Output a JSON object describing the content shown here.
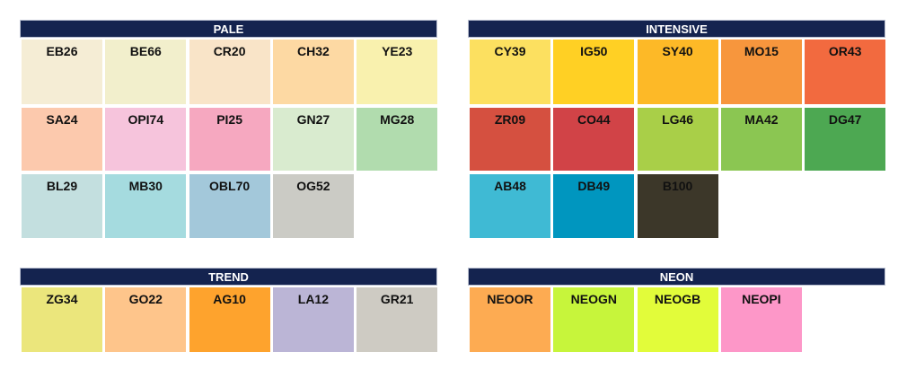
{
  "groups": [
    {
      "title": "PALE",
      "swatches": [
        {
          "label": "EB26",
          "color": "#f5edd5"
        },
        {
          "label": "BE66",
          "color": "#f2efcc"
        },
        {
          "label": "CR20",
          "color": "#f9e4c8"
        },
        {
          "label": "CH32",
          "color": "#fdd9a3"
        },
        {
          "label": "YE23",
          "color": "#f9f1ae"
        },
        {
          "label": "SA24",
          "color": "#fcc9ad"
        },
        {
          "label": "OPI74",
          "color": "#f6c4dc"
        },
        {
          "label": "PI25",
          "color": "#f6a8c0"
        },
        {
          "label": "GN27",
          "color": "#d9ebcf"
        },
        {
          "label": "MG28",
          "color": "#b1dcae"
        },
        {
          "label": "BL29",
          "color": "#c3dfdf"
        },
        {
          "label": "MB30",
          "color": "#a5dbdf"
        },
        {
          "label": "OBL70",
          "color": "#a3c8da"
        },
        {
          "label": "OG52",
          "color": "#cbcbc5"
        }
      ]
    },
    {
      "title": "INTENSIVE",
      "swatches": [
        {
          "label": "CY39",
          "color": "#fce060"
        },
        {
          "label": "IG50",
          "color": "#ffd024"
        },
        {
          "label": "SY40",
          "color": "#fdb927"
        },
        {
          "label": "MO15",
          "color": "#f7963d"
        },
        {
          "label": "OR43",
          "color": "#f26a3f"
        },
        {
          "label": "ZR09",
          "color": "#d55040"
        },
        {
          "label": "CO44",
          "color": "#d14347"
        },
        {
          "label": "LG46",
          "color": "#a9cf48"
        },
        {
          "label": "MA42",
          "color": "#8bc652"
        },
        {
          "label": "DG47",
          "color": "#4da852"
        },
        {
          "label": "AB48",
          "color": "#3fbad4"
        },
        {
          "label": "DB49",
          "color": "#0096bf"
        },
        {
          "label": "B100",
          "color": "#3c3729"
        }
      ]
    },
    {
      "title": "TREND",
      "swatches": [
        {
          "label": "ZG34",
          "color": "#ebe67c"
        },
        {
          "label": "GO22",
          "color": "#fec58b"
        },
        {
          "label": "AG10",
          "color": "#fea32d"
        },
        {
          "label": "LA12",
          "color": "#bbb5d6"
        },
        {
          "label": "GR21",
          "color": "#cecbc3"
        }
      ]
    },
    {
      "title": "NEON",
      "swatches": [
        {
          "label": "NEOOR",
          "color": "#fdab52"
        },
        {
          "label": "NEOGN",
          "color": "#c7f53b"
        },
        {
          "label": "NEOGB",
          "color": "#e2fc3a"
        },
        {
          "label": "NEOPI",
          "color": "#fd97c8"
        }
      ]
    }
  ]
}
